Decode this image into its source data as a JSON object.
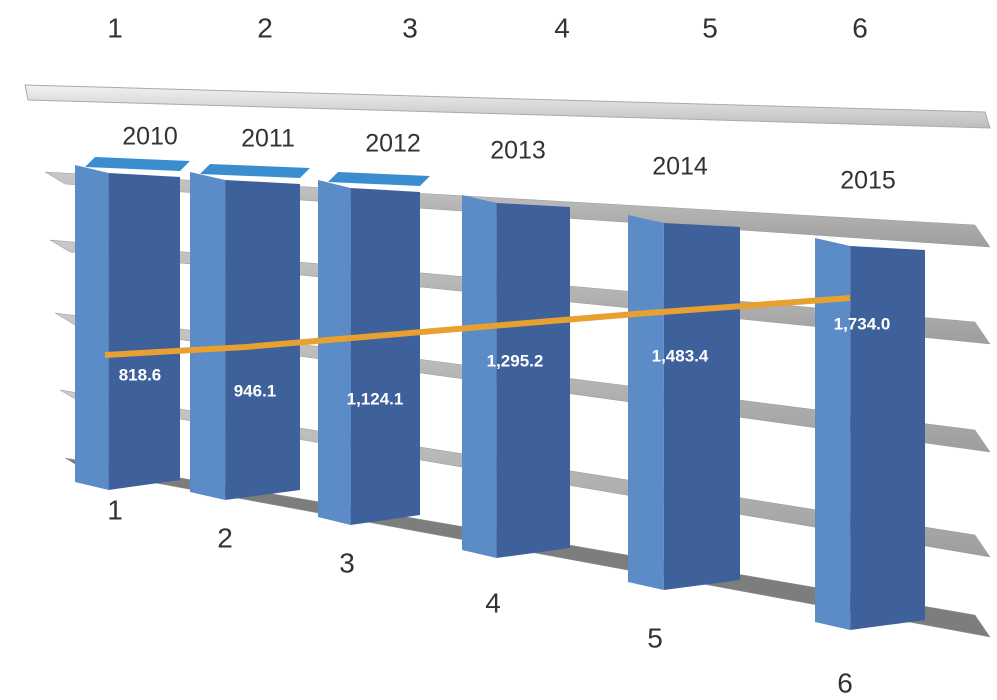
{
  "chart_data": {
    "type": "line",
    "top_numbers": [
      1,
      2,
      3,
      4,
      5,
      6
    ],
    "bottom_numbers": [
      1,
      2,
      3,
      4,
      5,
      6
    ],
    "categories": [
      "2010",
      "2011",
      "2012",
      "2013",
      "2014",
      "2015"
    ],
    "values": [
      818.6,
      946.1,
      1124.1,
      1295.2,
      1483.4,
      1734.0
    ],
    "value_labels": [
      "818.6",
      "946.1",
      "1,124.1",
      "1,295.2",
      "1,483.4",
      "1,734.0"
    ],
    "color": "#e8a030"
  }
}
